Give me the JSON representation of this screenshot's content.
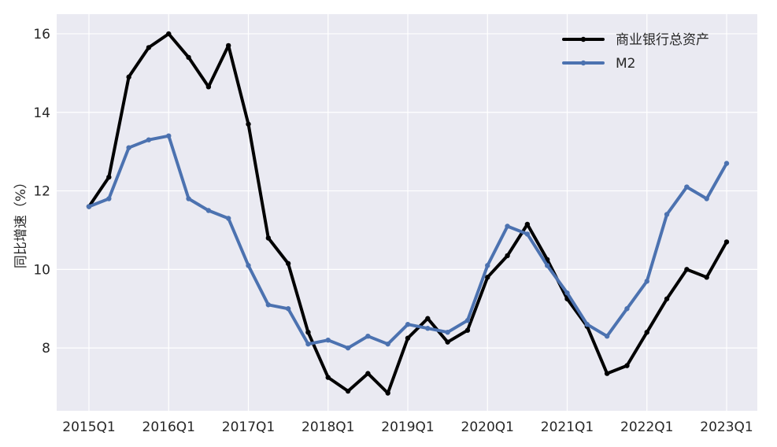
{
  "chart_data": {
    "type": "line",
    "ylabel": "同比增速（%）",
    "xlabel": "",
    "ylim": [
      6.4,
      16.5
    ],
    "yticks": [
      8,
      10,
      12,
      14,
      16
    ],
    "xtick_labels": [
      "2015Q1",
      "2016Q1",
      "2017Q1",
      "2018Q1",
      "2019Q1",
      "2020Q1",
      "2021Q1",
      "2022Q1",
      "2023Q1"
    ],
    "grid": true,
    "legend_position": "top-right",
    "x": [
      "2015Q1",
      "2015Q2",
      "2015Q3",
      "2015Q4",
      "2016Q1",
      "2016Q2",
      "2016Q3",
      "2016Q4",
      "2017Q1",
      "2017Q2",
      "2017Q3",
      "2017Q4",
      "2018Q1",
      "2018Q2",
      "2018Q3",
      "2018Q4",
      "2019Q1",
      "2019Q2",
      "2019Q3",
      "2019Q4",
      "2020Q1",
      "2020Q2",
      "2020Q3",
      "2020Q4",
      "2021Q1",
      "2021Q2",
      "2021Q3",
      "2021Q4",
      "2022Q1",
      "2022Q2",
      "2022Q3",
      "2022Q4",
      "2023Q1"
    ],
    "series": [
      {
        "name": "商业银行总资产",
        "color": "#000000",
        "values": [
          11.6,
          12.35,
          14.9,
          15.65,
          16.0,
          15.4,
          14.65,
          15.7,
          13.7,
          10.8,
          10.15,
          8.4,
          7.25,
          6.9,
          7.35,
          6.85,
          8.25,
          8.75,
          8.15,
          8.45,
          9.8,
          10.35,
          11.15,
          10.25,
          9.25,
          8.55,
          7.35,
          7.55,
          8.4,
          9.25,
          10.0,
          9.8,
          10.7
        ]
      },
      {
        "name": "M2",
        "color": "#4C72B0",
        "values": [
          11.6,
          11.8,
          13.1,
          13.3,
          13.4,
          11.8,
          11.5,
          11.3,
          10.1,
          9.1,
          9.0,
          8.1,
          8.2,
          8.0,
          8.3,
          8.1,
          8.6,
          8.5,
          8.4,
          8.7,
          10.1,
          11.1,
          10.9,
          10.1,
          9.4,
          8.6,
          8.3,
          9.0,
          9.7,
          11.4,
          12.1,
          11.8,
          12.7
        ]
      }
    ],
    "background_color": "#EAEAF2",
    "grid_color": "#FFFFFF"
  }
}
